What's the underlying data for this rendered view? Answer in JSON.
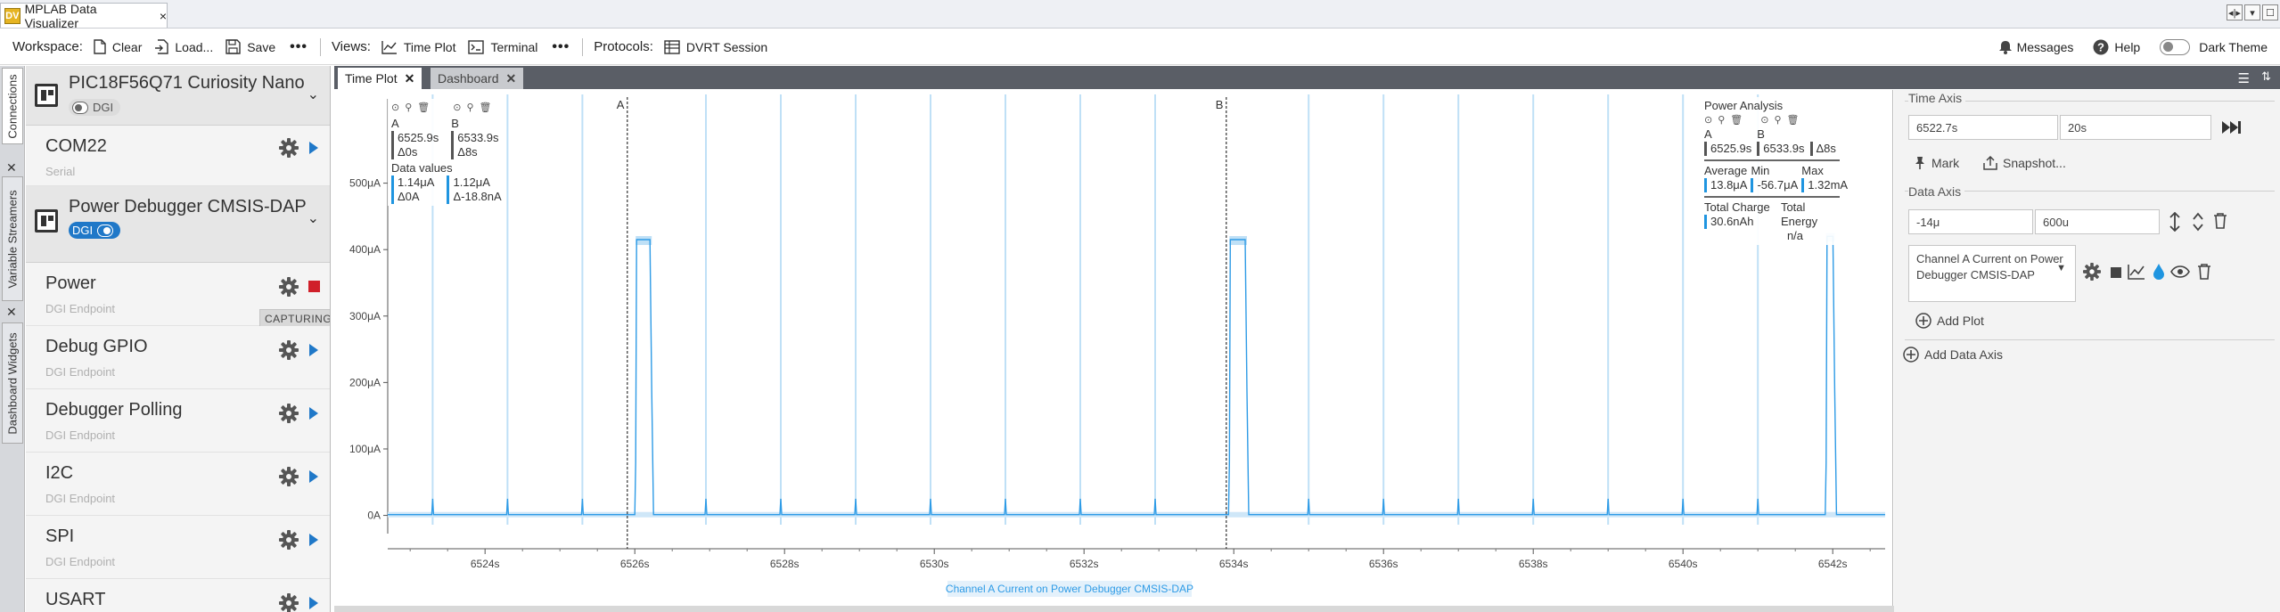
{
  "window": {
    "app_tab": "MPLAB Data Visualizer",
    "close_glyph": "×",
    "controls": [
      "◂|▸",
      "▾",
      "☐"
    ]
  },
  "toolbar": {
    "workspace_label": "Workspace:",
    "clear": "Clear",
    "load": "Load...",
    "save": "Save",
    "views_label": "Views:",
    "time_plot": "Time Plot",
    "terminal": "Terminal",
    "protocols_label": "Protocols:",
    "dvrt_session": "DVRT Session",
    "messages": "Messages",
    "help": "Help",
    "dark_theme": "Dark Theme",
    "more": "•••"
  },
  "rail": {
    "connections": "Connections",
    "variable_streamers": "Variable Streamers",
    "dashboard_widgets": "Dashboard Widgets"
  },
  "sidebar": {
    "devices": [
      {
        "name": "PIC18F56Q71 Curiosity Nano",
        "dgi": "DGI",
        "dgi_on": false
      },
      {
        "name": "Power Debugger CMSIS-DAP",
        "dgi": "DGI",
        "dgi_on": true
      }
    ],
    "com": {
      "name": "COM22",
      "sub": "Serial"
    },
    "endpoints": [
      {
        "name": "Power",
        "sub": "DGI Endpoint",
        "state": "CAPTURING"
      },
      {
        "name": "Debug GPIO",
        "sub": "DGI Endpoint"
      },
      {
        "name": "Debugger Polling",
        "sub": "DGI Endpoint"
      },
      {
        "name": "I2C",
        "sub": "DGI Endpoint"
      },
      {
        "name": "SPI",
        "sub": "DGI Endpoint"
      },
      {
        "name": "USART",
        "sub": ""
      }
    ]
  },
  "tabs": [
    {
      "label": "Time Plot",
      "active": true
    },
    {
      "label": "Dashboard",
      "active": false
    }
  ],
  "cursor_box": {
    "a_label": "A",
    "b_label": "B",
    "a_time": "6525.9s",
    "a_delta": "Δ0s",
    "b_time": "6533.9s",
    "b_delta": "Δ8s",
    "data_values": "Data values",
    "a_val": "1.14μA",
    "a_dval": "Δ0A",
    "b_val": "1.12μA",
    "b_dval": "Δ-18.8nA"
  },
  "power_analysis": {
    "title": "Power Analysis",
    "a_label": "A",
    "b_label": "B",
    "a_time": "6525.9s",
    "b_time": "6533.9s",
    "delta": "Δ8s",
    "average_label": "Average",
    "average": "13.8μA",
    "min_label": "Min",
    "min": "-56.7μA",
    "max_label": "Max",
    "max": "1.32mA",
    "charge_label": "Total Charge",
    "charge": "30.6nAh",
    "energy_label": "Total Energy",
    "energy": "n/a"
  },
  "chart_data": {
    "type": "line",
    "ylabel": "",
    "xlabel": "",
    "y_ticks": [
      "0A",
      "100μA",
      "200μA",
      "300μA",
      "400μA",
      "500μA"
    ],
    "x_ticks": [
      "6524s",
      "6526s",
      "6528s",
      "6530s",
      "6532s",
      "6534s",
      "6536s",
      "6538s",
      "6540s",
      "6542s"
    ],
    "xlim": [
      6522.7,
      6542.7
    ],
    "ylim": [
      -14,
      600
    ],
    "cursors": [
      {
        "label": "A",
        "x": 6525.9
      },
      {
        "label": "B",
        "x": 6533.9
      }
    ],
    "spikes_x": [
      6523.3,
      6524.3,
      6525.3,
      6526.95,
      6527.95,
      6528.95,
      6529.95,
      6530.95,
      6531.95,
      6532.95,
      6535.0,
      6536.0,
      6537.0,
      6538.0,
      6539.0,
      6540.0,
      6541.0
    ],
    "spike_height": 25,
    "pulses": [
      {
        "start": 6526.0,
        "end": 6526.25,
        "level": 415
      },
      {
        "start": 6533.93,
        "end": 6534.2,
        "level": 415
      },
      {
        "start": 6541.9,
        "end": 6542.05,
        "level": 420
      }
    ],
    "baseline": 1.1,
    "series": [
      {
        "name": "Channel A Current on Power Debugger CMSIS-DAP",
        "color": "#2e9be6"
      }
    ]
  },
  "right_panel": {
    "time_axis_label": "Time Axis",
    "time_start": "6522.7s",
    "time_span": "20s",
    "mark": "Mark",
    "snapshot": "Snapshot...",
    "data_axis_label": "Data Axis",
    "data_min": "-14μ",
    "data_max": "600u",
    "channel": "Channel A Current on Power Debugger CMSIS-DAP",
    "add_plot": "Add Plot",
    "add_data_axis": "Add Data Axis"
  },
  "colors": {
    "accent": "#1f78c8",
    "trace": "#2e9be6",
    "stop": "#d0202a"
  }
}
